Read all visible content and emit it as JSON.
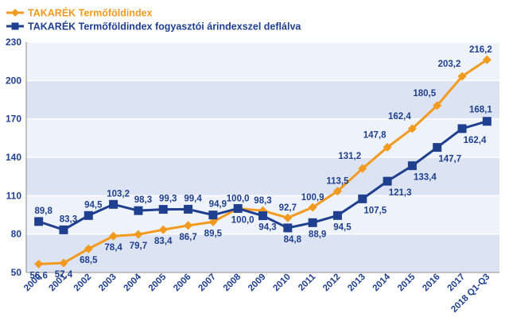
{
  "chart_data": {
    "type": "line",
    "categories": [
      "2000",
      "2001",
      "2002",
      "2003",
      "2004",
      "2005",
      "2006",
      "2007",
      "2008",
      "2009",
      "2010",
      "2011",
      "2012",
      "2013",
      "2014",
      "2015",
      "2016",
      "2017",
      "2018 Q1-Q3"
    ],
    "series": [
      {
        "name": "TAKARÉK Termőföldindex",
        "color": "#F29A1F",
        "marker": "diamond",
        "values": [
          56.6,
          57.4,
          68.5,
          78.4,
          79.7,
          83.4,
          86.7,
          89.5,
          100.0,
          98.3,
          92.7,
          100.9,
          113.5,
          131.2,
          147.8,
          162.4,
          180.5,
          203.2,
          216.2
        ],
        "labels": [
          "56,6",
          "57,4",
          "68,5",
          "78,4",
          "79,7",
          "83,4",
          "86,7",
          "89,5",
          "100,0",
          "98,3",
          "92,7",
          "100,9",
          "113,5",
          "131,2",
          "147,8",
          "162,4",
          "180,5",
          "203,2",
          "216,2"
        ]
      },
      {
        "name": "TAKARÉK Termőföldindex fogyasztói árindexszel deflálva",
        "color": "#1F3F8F",
        "marker": "square",
        "values": [
          89.8,
          83.3,
          94.5,
          103.2,
          98.3,
          99.3,
          99.4,
          94.9,
          100.0,
          94.3,
          84.8,
          88.9,
          94.5,
          107.5,
          121.3,
          133.4,
          147.7,
          162.4,
          168.1
        ],
        "labels": [
          "89,8",
          "83,3",
          "94,5",
          "103,2",
          "98,3",
          "99,3",
          "99,4",
          "94,9",
          "100,0",
          "94,3",
          "84,8",
          "88,9",
          "94,5",
          "107,5",
          "121,3",
          "133,4",
          "147,7",
          "162,4",
          "168,1"
        ]
      }
    ],
    "yticks": [
      50,
      80,
      110,
      140,
      170,
      200,
      230
    ],
    "ytick_labels": [
      "50",
      "80",
      "110",
      "140",
      "170",
      "200",
      "230"
    ],
    "ylim": [
      50,
      230
    ],
    "grid": "horizontal bands",
    "band_colors": [
      "#DCE3F2",
      "#EEF2FA"
    ],
    "legend_position": "top-left",
    "label_color": "#1F3F8F"
  }
}
